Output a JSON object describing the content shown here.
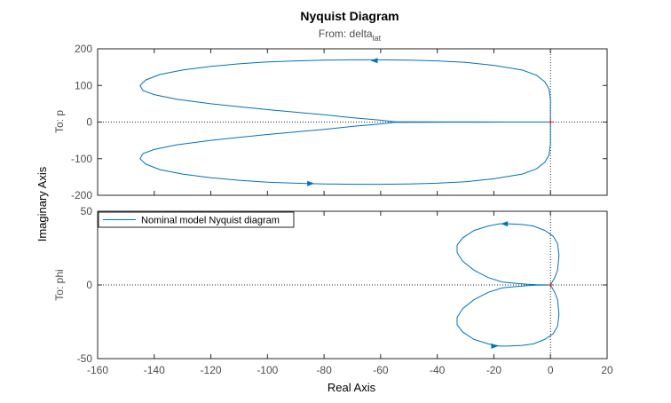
{
  "chart_data": {
    "type": "line",
    "title": "Nyquist Diagram",
    "subtitle": "From: delta",
    "subtitle_subscript": "lat",
    "xlabel": "Real Axis",
    "ylabel": "Imaginary Axis",
    "xlim": [
      -160,
      20
    ],
    "xticks": [
      -160,
      -140,
      -120,
      -100,
      -80,
      -60,
      -40,
      -20,
      0,
      20
    ],
    "grid": false,
    "colors": {
      "series": "#0072bd",
      "axis": "#262626",
      "marker": "#d62728"
    },
    "panels": [
      {
        "label": "To: p",
        "ylim": [
          -200,
          200
        ],
        "yticks": [
          200,
          100,
          0,
          -100,
          -200
        ],
        "series": [
          {
            "x": [
              0,
              0,
              -0.5,
              -2,
              -5,
              -10,
              -20,
              -30,
              -40,
              -50,
              -60,
              -70,
              -80,
              -90,
              -100,
              -110,
              -120,
              -130,
              -138,
              -143,
              -145,
              -144,
              -140,
              -132,
              -120,
              -110,
              -100,
              -90,
              -80,
              -70,
              -60,
              -55,
              -45,
              -35,
              -25,
              -15,
              -8,
              -3,
              0
            ],
            "y": [
              0,
              60,
              90,
              110,
              128,
              142,
              155,
              163,
              167,
              169,
              170,
              170,
              169,
              167,
              164,
              159,
              152,
              142,
              130,
              115,
              100,
              86,
              75,
              62,
              50,
              42,
              34,
              27,
              20,
              12,
              5,
              1,
              0.5,
              0.3,
              0.2,
              0.1,
              0.05,
              0.02,
              0
            ],
            "mirror": true
          }
        ],
        "arrows": [
          {
            "x": -62,
            "y": 168,
            "dir": "left"
          },
          {
            "x": -85,
            "y": -168,
            "dir": "right"
          }
        ]
      },
      {
        "label": "To: phi",
        "ylim": [
          -50,
          50
        ],
        "yticks": [
          50,
          0,
          -50
        ],
        "series": [
          {
            "x": [
              0,
              1.5,
              2.5,
              3,
              2.5,
              1,
              -2,
              -6,
              -10,
              -15,
              -18,
              -22,
              -27,
              -31,
              -33,
              -33,
              -31,
              -27,
              -22,
              -17,
              -12,
              -8,
              -5,
              -2,
              0
            ],
            "y": [
              0,
              5,
              10,
              20,
              28,
              33,
              37,
              40,
              41,
              41.5,
              41.5,
              40,
              37,
              32,
              27,
              22,
              16,
              10,
              5,
              2,
              1,
              0.5,
              0.2,
              0.05,
              0
            ],
            "mirror": true
          }
        ],
        "arrows": [
          {
            "x": -16,
            "y": 41.5,
            "dir": "left"
          },
          {
            "x": -20,
            "y": -41.5,
            "dir": "right"
          }
        ]
      }
    ],
    "legend": {
      "entries": [
        "Nominal model Nyquist diagram"
      ],
      "location": "top-left of lower panel"
    }
  }
}
